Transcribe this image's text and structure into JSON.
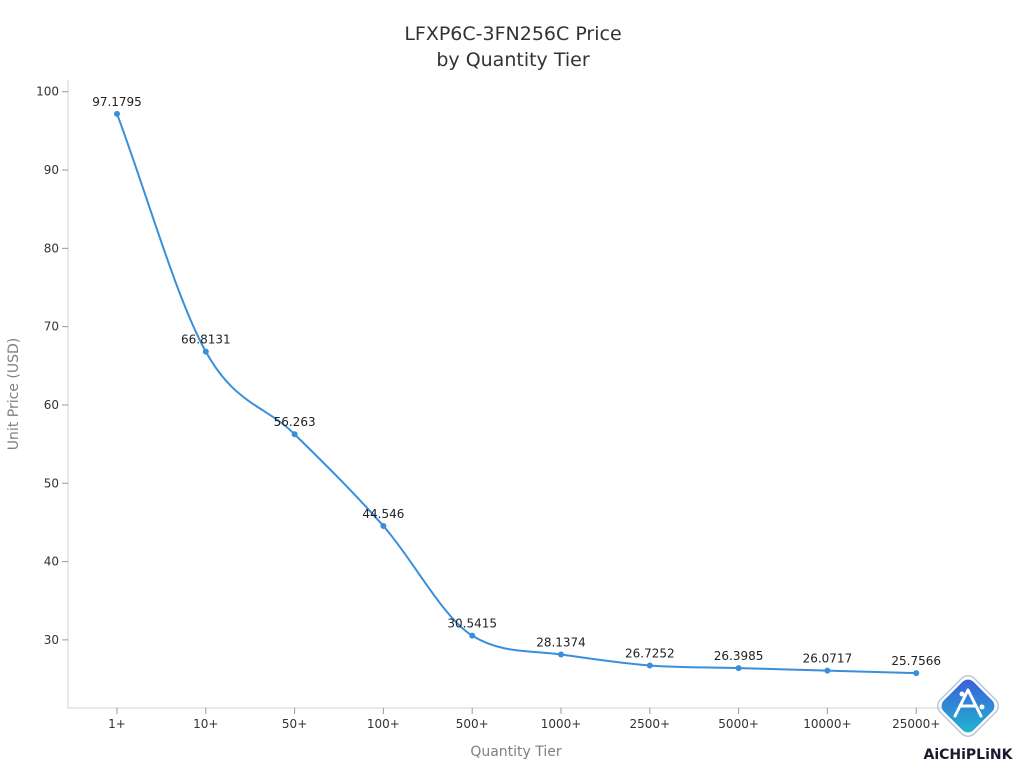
{
  "chart_data": {
    "type": "line",
    "title": [
      "LFXP6C-3FN256C Price",
      "by Quantity Tier"
    ],
    "xlabel": "Quantity Tier",
    "ylabel": "Unit Price (USD)",
    "categories": [
      "1+",
      "10+",
      "50+",
      "100+",
      "500+",
      "1000+",
      "2500+",
      "5000+",
      "10000+",
      "25000+"
    ],
    "series": [
      {
        "values": [
          97.1795,
          66.8131,
          56.263,
          44.546,
          30.5415,
          28.1374,
          26.7252,
          26.3985,
          26.0717,
          25.7566
        ],
        "labels": [
          "97.1795",
          "66.8131",
          "56.263",
          "44.546",
          "30.5415",
          "28.1374",
          "26.7252",
          "26.3985",
          "26.0717",
          "25.7566"
        ]
      }
    ],
    "ylim": [
      21.3,
      101.5
    ],
    "yticks": [
      30,
      40,
      50,
      60,
      70,
      80,
      90,
      100
    ],
    "line_color": "#3a8fd9",
    "grid": false
  },
  "logo": {
    "text": "AiCHiPLiNK",
    "colors": [
      "#3b5bdb",
      "#22b8cf"
    ]
  }
}
